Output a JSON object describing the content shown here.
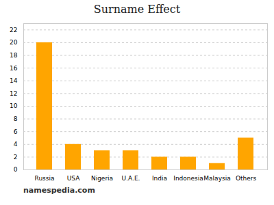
{
  "chart_data": {
    "type": "bar",
    "title": "Surname Effect",
    "categories": [
      "Russia",
      "USA",
      "Nigeria",
      "U.A.E.",
      "India",
      "Indonesia",
      "Malaysia",
      "Others"
    ],
    "values": [
      20,
      4,
      3,
      3,
      2,
      2,
      1,
      5
    ],
    "color": "#FFA500",
    "ylim": [
      0,
      23
    ],
    "yticks": [
      0,
      2,
      4,
      6,
      8,
      10,
      12,
      14,
      16,
      18,
      20,
      22
    ],
    "grid": true,
    "caption": "namespedia.com"
  }
}
